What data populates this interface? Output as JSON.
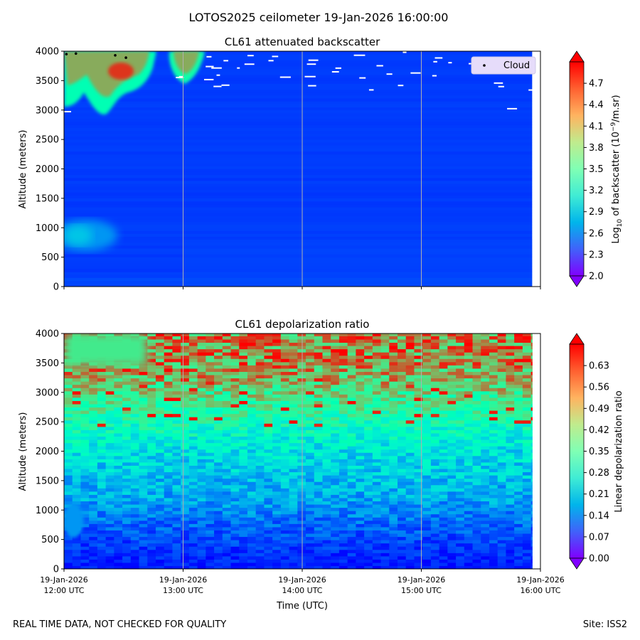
{
  "figure": {
    "suptitle": "LOTOS2025 ceilometer 19-Jan-2026 16:00:00",
    "footer_left": "REAL TIME DATA, NOT CHECKED FOR QUALITY",
    "footer_right": "Site: ISS2"
  },
  "chart_data": [
    {
      "type": "heatmap",
      "id": "backscatter",
      "title": "CL61 attenuated backscatter",
      "ylabel": "Altitude (meters)",
      "xlabel": "",
      "xlim": [
        0,
        4
      ],
      "ylim": [
        0,
        4000
      ],
      "yticks": [
        0,
        500,
        1000,
        1500,
        2000,
        2500,
        3000,
        3500,
        4000
      ],
      "grid": "vertical only",
      "colormap": "rainbow",
      "colorbar": {
        "label_prefix": "Log",
        "label_sub": "10",
        "label_mid": " of backscatter (10",
        "label_sup": "−9",
        "label_suffix": "/m.sr)",
        "range": [
          2.0,
          5.0
        ],
        "ticks": [
          "2.0",
          "2.3",
          "2.6",
          "2.9",
          "3.2",
          "3.5",
          "3.8",
          "4.1",
          "4.4",
          "4.7"
        ],
        "extend": "both"
      },
      "legend": {
        "label": "Cloud",
        "position": "top-right"
      },
      "cloud_points": [
        {
          "t": 0.02,
          "alt": 3950
        },
        {
          "t": 0.1,
          "alt": 3960
        },
        {
          "t": 0.43,
          "alt": 3930
        },
        {
          "t": 0.52,
          "alt": 3890
        }
      ],
      "features": [
        {
          "desc": "high cloud near top (left)",
          "t": [
            0.0,
            0.75
          ],
          "alt": [
            2950,
            4000
          ],
          "value": 4.6
        },
        {
          "desc": "high cloud near top (mid)",
          "t": [
            0.85,
            1.15
          ],
          "alt": [
            3500,
            4000
          ],
          "value": 4.2
        },
        {
          "desc": "low aerosol layer",
          "t": [
            0.0,
            0.4
          ],
          "alt": [
            650,
            1100
          ],
          "value": 2.7
        },
        {
          "desc": "background",
          "t": [
            0,
            3.93
          ],
          "alt": [
            0,
            4000
          ],
          "value": 2.25
        }
      ]
    },
    {
      "type": "heatmap",
      "id": "depolarization",
      "title": "CL61 depolarization ratio",
      "ylabel": "Altitude (meters)",
      "xlabel": "Time (UTC)",
      "xlim": [
        0,
        4
      ],
      "ylim": [
        0,
        4000
      ],
      "yticks": [
        0,
        500,
        1000,
        1500,
        2000,
        2500,
        3000,
        3500,
        4000
      ],
      "grid": "vertical only",
      "colormap": "rainbow",
      "colorbar": {
        "label": "Linear depolarization ratio",
        "range": [
          0.0,
          0.7
        ],
        "ticks": [
          "0.00",
          "0.07",
          "0.14",
          "0.21",
          "0.28",
          "0.35",
          "0.42",
          "0.49",
          "0.56",
          "0.63"
        ],
        "extend": "both"
      },
      "xticks": [
        {
          "date": "19-Jan-2026",
          "time": "12:00 UTC"
        },
        {
          "date": "19-Jan-2026",
          "time": "13:00 UTC"
        },
        {
          "date": "19-Jan-2026",
          "time": "14:00 UTC"
        },
        {
          "date": "19-Jan-2026",
          "time": "15:00 UTC"
        },
        {
          "date": "19-Jan-2026",
          "time": "16:00 UTC"
        }
      ],
      "profile": [
        {
          "alt": 0,
          "value": 0.02
        },
        {
          "alt": 400,
          "value": 0.05
        },
        {
          "alt": 800,
          "value": 0.1
        },
        {
          "alt": 1200,
          "value": 0.16
        },
        {
          "alt": 1600,
          "value": 0.2
        },
        {
          "alt": 2000,
          "value": 0.25
        },
        {
          "alt": 2400,
          "value": 0.33
        },
        {
          "alt": 2800,
          "value": 0.42
        },
        {
          "alt": 3200,
          "value": 0.52
        },
        {
          "alt": 3600,
          "value": 0.57
        },
        {
          "alt": 4000,
          "value": 0.58
        }
      ]
    }
  ]
}
